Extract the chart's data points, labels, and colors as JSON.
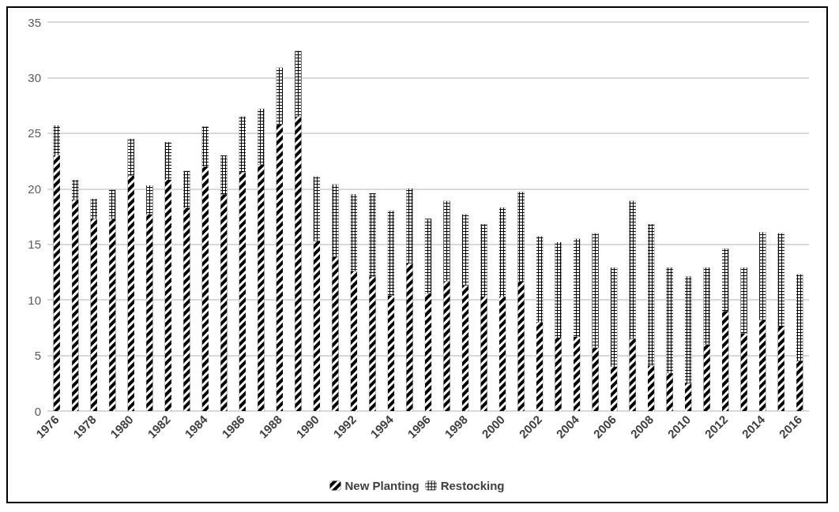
{
  "chart_data": {
    "type": "bar",
    "stacked": true,
    "legend": "bottom",
    "grid": "y",
    "categories": [
      "1976",
      null,
      "1978",
      null,
      "1980",
      null,
      "1982",
      null,
      "1984",
      null,
      "1986",
      null,
      "1988",
      null,
      "1990",
      null,
      "1992",
      null,
      "1994",
      null,
      "1996",
      null,
      "1998",
      null,
      "2000",
      null,
      "2002",
      null,
      "2004",
      null,
      "2006",
      null,
      "2008",
      null,
      "2010",
      null,
      "2012",
      null,
      "2014",
      null,
      "2016"
    ],
    "ylim": [
      0,
      35
    ],
    "yticks": [
      0,
      5,
      10,
      15,
      20,
      25,
      30,
      35
    ],
    "series": [
      {
        "name": "New Planting",
        "color": "#000000",
        "values": [
          23,
          19,
          17.3,
          17.3,
          21.2,
          17.7,
          20.8,
          18.3,
          22,
          19.5,
          21.5,
          22.2,
          25.8,
          26.5,
          15.3,
          13.9,
          12.6,
          12.1,
          10.4,
          13.3,
          10.6,
          11.7,
          11.3,
          10.3,
          10.3,
          11.7,
          8,
          6.6,
          6.7,
          5.7,
          4,
          6.5,
          4.1,
          3.4,
          2.5,
          6,
          9,
          7,
          8.2,
          7.6,
          4.5
        ]
      },
      {
        "name": "Restocking",
        "color": "#000000",
        "values": [
          2.7,
          1.8,
          1.8,
          2.6,
          3.3,
          2.6,
          3.4,
          3.3,
          3.6,
          3.5,
          5,
          5,
          5.1,
          5.9,
          5.8,
          6.5,
          6.9,
          7.5,
          7.6,
          6.7,
          6.7,
          7.2,
          6.4,
          6.5,
          8,
          8,
          7.7,
          8.6,
          8.8,
          10.3,
          8.9,
          12.4,
          12.7,
          9.5,
          9.6,
          6.9,
          5.6,
          5.9,
          7.9,
          8.4,
          7.8
        ]
      }
    ]
  }
}
